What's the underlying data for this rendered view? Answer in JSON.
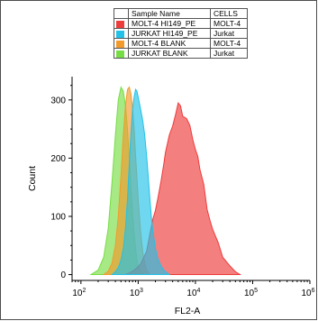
{
  "chart_data": {
    "type": "area",
    "xlabel": "FL2-A",
    "ylabel": "Count",
    "x_scale": "log",
    "xlim": [
      70,
      1000000
    ],
    "ylim": [
      -10,
      340
    ],
    "y_ticks": [
      "0",
      "100",
      "200",
      "300"
    ],
    "y_tick_values": [
      0,
      100,
      200,
      300
    ],
    "x_ticks": [
      {
        "base": "10",
        "exp": "2",
        "value": 100
      },
      {
        "base": "10",
        "exp": "3",
        "value": 1000
      },
      {
        "base": "10",
        "exp": "4",
        "value": 10000
      },
      {
        "base": "10",
        "exp": "5",
        "value": 100000
      },
      {
        "base": "10",
        "exp": "6",
        "value": 1000000
      }
    ],
    "legend": {
      "placement": "top-center",
      "header": [
        "Sample Name",
        "CELLS"
      ],
      "rows": [
        {
          "sample": "MOLT-4 HI149_PE",
          "cells": "MOLT-4",
          "color": "#ee3b3b"
        },
        {
          "sample": "JURKAT HI149_PE",
          "cells": "Jurkat",
          "color": "#22c1e8"
        },
        {
          "sample": "MOLT-4 BLANK",
          "cells": "MOLT-4",
          "color": "#f39a2c"
        },
        {
          "sample": "JURKAT BLANK",
          "cells": "Jurkat",
          "color": "#77dd44"
        }
      ]
    },
    "series": [
      {
        "color": "#77dd44",
        "draw_order": 1,
        "x": [
          150,
          200,
          250,
          300,
          350,
          400,
          450,
          500,
          550,
          600,
          650,
          700,
          750,
          800,
          850,
          900,
          950,
          1000,
          1100,
          1200,
          1300
        ],
        "y": [
          0,
          8,
          30,
          80,
          160,
          240,
          300,
          322,
          315,
          290,
          250,
          200,
          150,
          105,
          70,
          45,
          25,
          15,
          6,
          2,
          0
        ]
      },
      {
        "color": "#f39a2c",
        "draw_order": 2,
        "x": [
          250,
          300,
          350,
          400,
          450,
          500,
          550,
          600,
          650,
          700,
          750,
          800,
          850,
          900,
          1000,
          1100,
          1200,
          1300,
          1400,
          1600
        ],
        "y": [
          0,
          6,
          20,
          50,
          100,
          170,
          240,
          290,
          318,
          322,
          310,
          285,
          250,
          205,
          130,
          75,
          40,
          20,
          8,
          0
        ]
      },
      {
        "color": "#ee3b3b",
        "draw_order": 3,
        "x": [
          600,
          700,
          800,
          900,
          1000,
          1100,
          1200,
          1400,
          1600,
          1800,
          2000,
          2200,
          2500,
          2800,
          3000,
          3500,
          4000,
          4500,
          5000,
          5500,
          6000,
          7000,
          8000,
          9000,
          10000,
          11000,
          12000,
          14000,
          16000,
          18000,
          20000,
          25000,
          30000,
          40000,
          50000,
          60000
        ],
        "y": [
          0,
          3,
          6,
          10,
          14,
          18,
          26,
          40,
          70,
          95,
          110,
          130,
          160,
          190,
          210,
          240,
          255,
          275,
          295,
          290,
          272,
          268,
          256,
          232,
          215,
          203,
          180,
          155,
          112,
          93,
          78,
          55,
          30,
          15,
          5,
          0
        ]
      },
      {
        "color": "#22c1e8",
        "draw_order": 4,
        "x": [
          350,
          400,
          450,
          500,
          550,
          600,
          650,
          700,
          750,
          800,
          850,
          900,
          950,
          1000,
          1100,
          1200,
          1300,
          1400,
          1500,
          1600,
          1700,
          1800,
          2000,
          2200,
          2500,
          2800,
          3000,
          3500
        ],
        "y": [
          0,
          5,
          12,
          25,
          45,
          80,
          130,
          190,
          245,
          285,
          305,
          318,
          315,
          305,
          285,
          265,
          240,
          205,
          168,
          130,
          100,
          75,
          45,
          28,
          15,
          8,
          5,
          0
        ]
      }
    ]
  }
}
